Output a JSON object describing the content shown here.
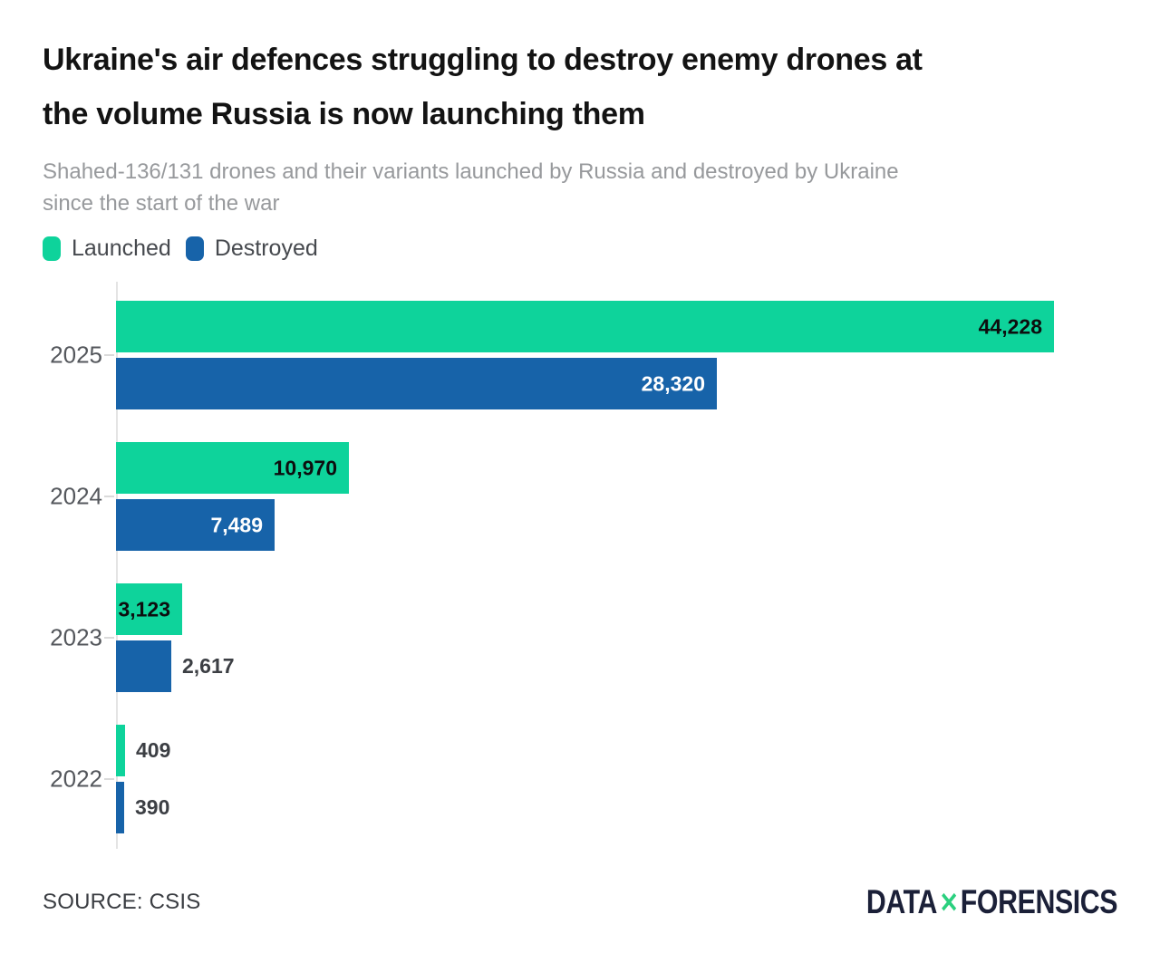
{
  "header": {
    "title_line1": "Ukraine's air defences struggling to destroy enemy drones at",
    "title_line2": "the volume Russia is now launching them",
    "title_full": "Ukraine's air defences struggling to destroy enemy drones at the volume Russia is now launching them",
    "subtitle_line1": "Shahed-136/131 drones and their variants launched by Russia and destroyed by Ukraine",
    "subtitle_line2": "since the start of the war"
  },
  "legend": [
    {
      "label": "Launched",
      "color": "#0ed39b"
    },
    {
      "label": "Destroyed",
      "color": "#1763a9"
    }
  ],
  "chart_data": {
    "type": "bar",
    "orientation": "horizontal",
    "title": "Ukraine's air defences struggling to destroy enemy drones at the volume Russia is now launching them",
    "subtitle": "Shahed-136/131 drones and their variants launched by Russia and destroyed by Ukraine since the start of the war",
    "categories": [
      "2025",
      "2024",
      "2023",
      "2022"
    ],
    "series": [
      {
        "name": "Launched",
        "color": "#0ed39b",
        "values": [
          44228,
          10970,
          3123,
          409
        ],
        "labels": [
          "44,228",
          "10,970",
          "3,123",
          "409"
        ],
        "label_inside": [
          true,
          true,
          true,
          false
        ],
        "label_color_inside": "#0d0e0f",
        "label_color_outside": "#3c3f44"
      },
      {
        "name": "Destroyed",
        "color": "#1763a9",
        "values": [
          28320,
          7489,
          2617,
          390
        ],
        "labels": [
          "28,320",
          "7,489",
          "2,617",
          "390"
        ],
        "label_inside": [
          true,
          true,
          false,
          false
        ],
        "label_color_inside": "#ffffff",
        "label_color_outside": "#3c3f44"
      }
    ],
    "xlim": [
      0,
      44228
    ],
    "value_labels": "on",
    "grid": "off",
    "legend_position": "top-left",
    "axis_color": "#e4e4e4"
  },
  "footer": {
    "source": "SOURCE: CSIS",
    "logo": {
      "part1": "DATA",
      "x": "✕",
      "part2": "FORENSICS",
      "text_color": "#1b2038",
      "accent_color": "#2bd07f"
    }
  }
}
